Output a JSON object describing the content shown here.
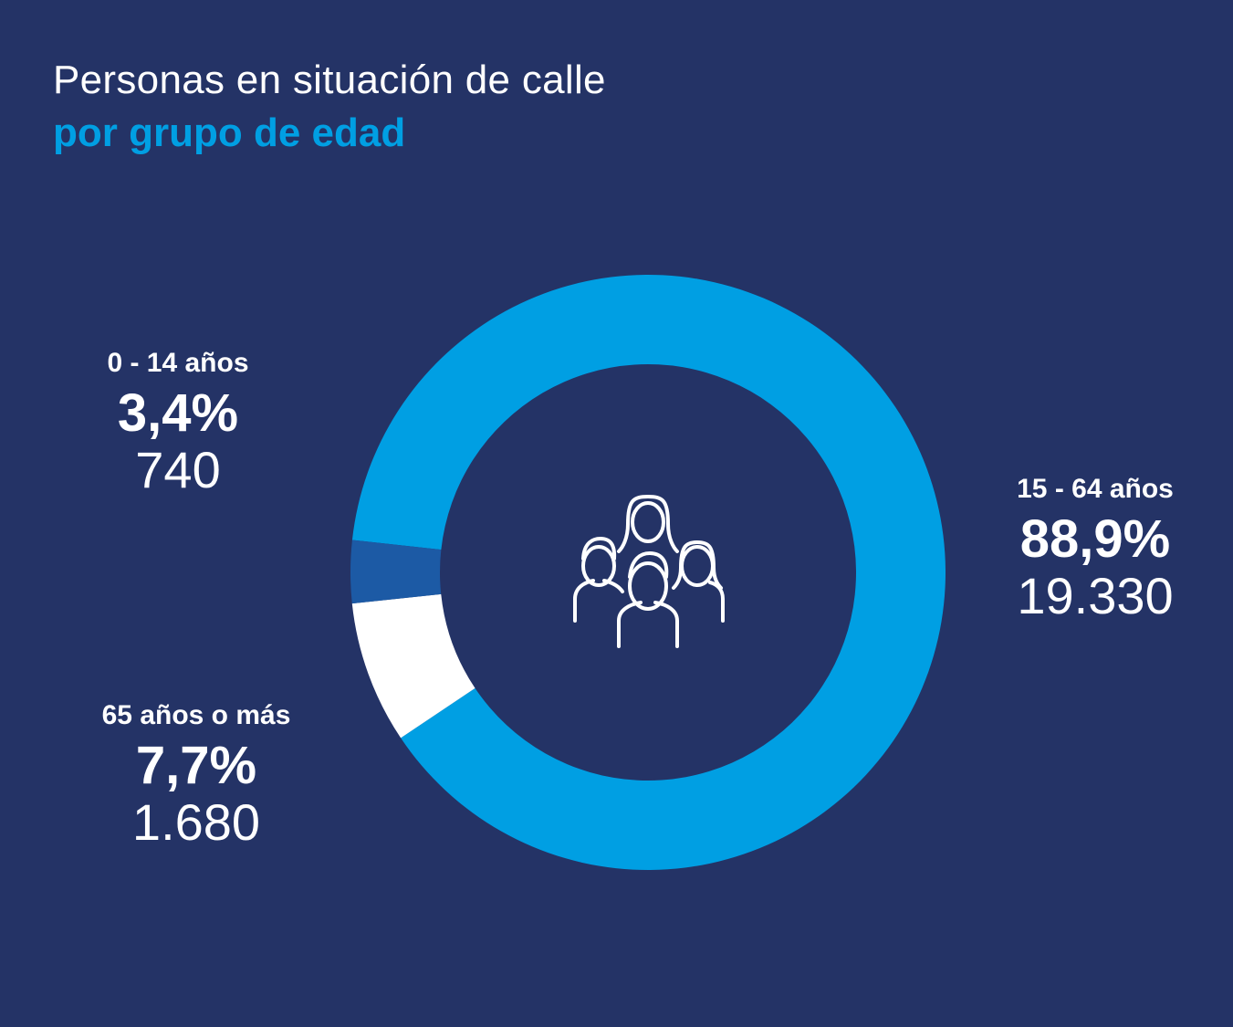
{
  "title_line1": "Personas en situación de calle",
  "title_line2": "por grupo de edad",
  "center_icon": "people-group-icon",
  "colors": {
    "background": "#243366",
    "accent": "#009FE3",
    "series": [
      "#1C5AA5",
      "#009FE3",
      "#FFFFFF"
    ]
  },
  "chart_data": {
    "type": "pie",
    "donut": true,
    "title": "Personas en situación de calle por grupo de edad",
    "categories": [
      "0 - 14 años",
      "15 - 64 años",
      "65 años o más"
    ],
    "values": [
      740,
      19330,
      1680
    ],
    "percent_labels": [
      "3,4%",
      "88,9%",
      "7,7%"
    ],
    "value_labels": [
      "740",
      "19.330",
      "1.680"
    ],
    "percents": [
      3.4,
      88.9,
      7.7
    ],
    "colors": [
      "#1C5AA5",
      "#009FE3",
      "#FFFFFF"
    ]
  }
}
